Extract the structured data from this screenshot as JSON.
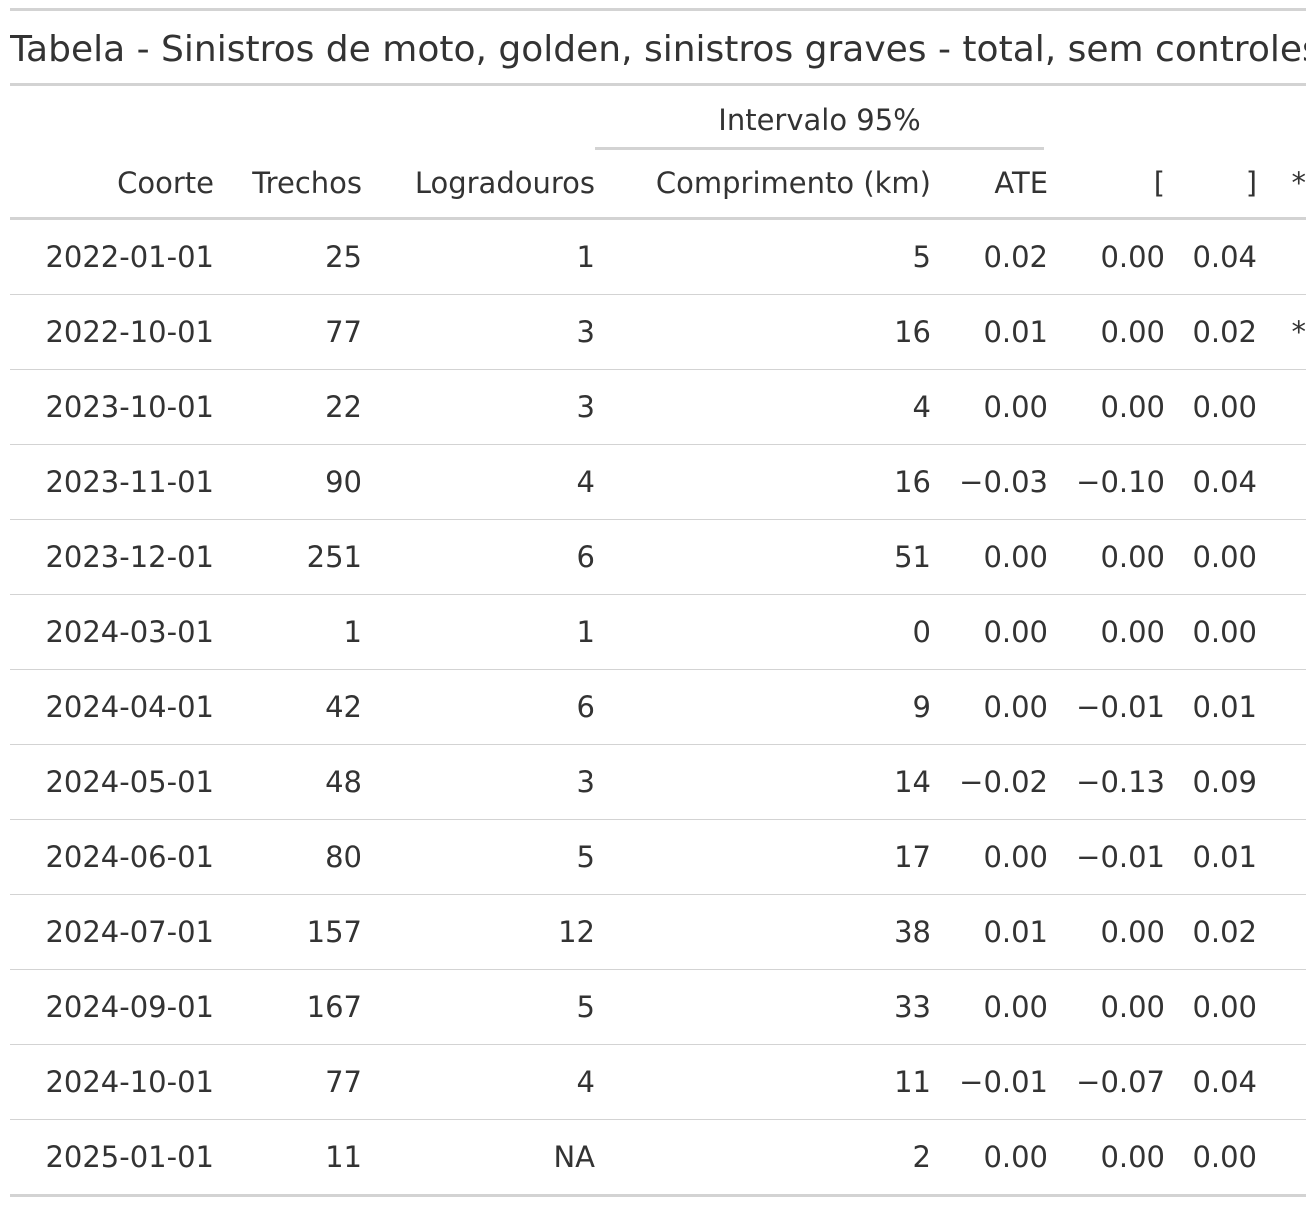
{
  "table": {
    "title": "Tabela - Sinistros de moto, golden, sinistros graves - total, sem controles",
    "spanner_label": "Intervalo 95%",
    "columns": [
      "Coorte",
      "Trechos",
      "Logradouros",
      "Comprimento (km)",
      "ATE",
      "[",
      "]",
      "*"
    ],
    "rows": [
      [
        "2022-01-01",
        "25",
        "1",
        "5",
        "0.02",
        "0.00",
        "0.04",
        ""
      ],
      [
        "2022-10-01",
        "77",
        "3",
        "16",
        "0.01",
        "0.00",
        "0.02",
        "*"
      ],
      [
        "2023-10-01",
        "22",
        "3",
        "4",
        "0.00",
        "0.00",
        "0.00",
        ""
      ],
      [
        "2023-11-01",
        "90",
        "4",
        "16",
        "−0.03",
        "−0.10",
        "0.04",
        ""
      ],
      [
        "2023-12-01",
        "251",
        "6",
        "51",
        "0.00",
        "0.00",
        "0.00",
        ""
      ],
      [
        "2024-03-01",
        "1",
        "1",
        "0",
        "0.00",
        "0.00",
        "0.00",
        ""
      ],
      [
        "2024-04-01",
        "42",
        "6",
        "9",
        "0.00",
        "−0.01",
        "0.01",
        ""
      ],
      [
        "2024-05-01",
        "48",
        "3",
        "14",
        "−0.02",
        "−0.13",
        "0.09",
        ""
      ],
      [
        "2024-06-01",
        "80",
        "5",
        "17",
        "0.00",
        "−0.01",
        "0.01",
        ""
      ],
      [
        "2024-07-01",
        "157",
        "12",
        "38",
        "0.01",
        "0.00",
        "0.02",
        ""
      ],
      [
        "2024-09-01",
        "167",
        "5",
        "33",
        "0.00",
        "0.00",
        "0.00",
        ""
      ],
      [
        "2024-10-01",
        "77",
        "4",
        "11",
        "−0.01",
        "−0.07",
        "0.04",
        ""
      ],
      [
        "2025-01-01",
        "11",
        "NA",
        "2",
        "0.00",
        "0.00",
        "0.00",
        ""
      ]
    ]
  }
}
